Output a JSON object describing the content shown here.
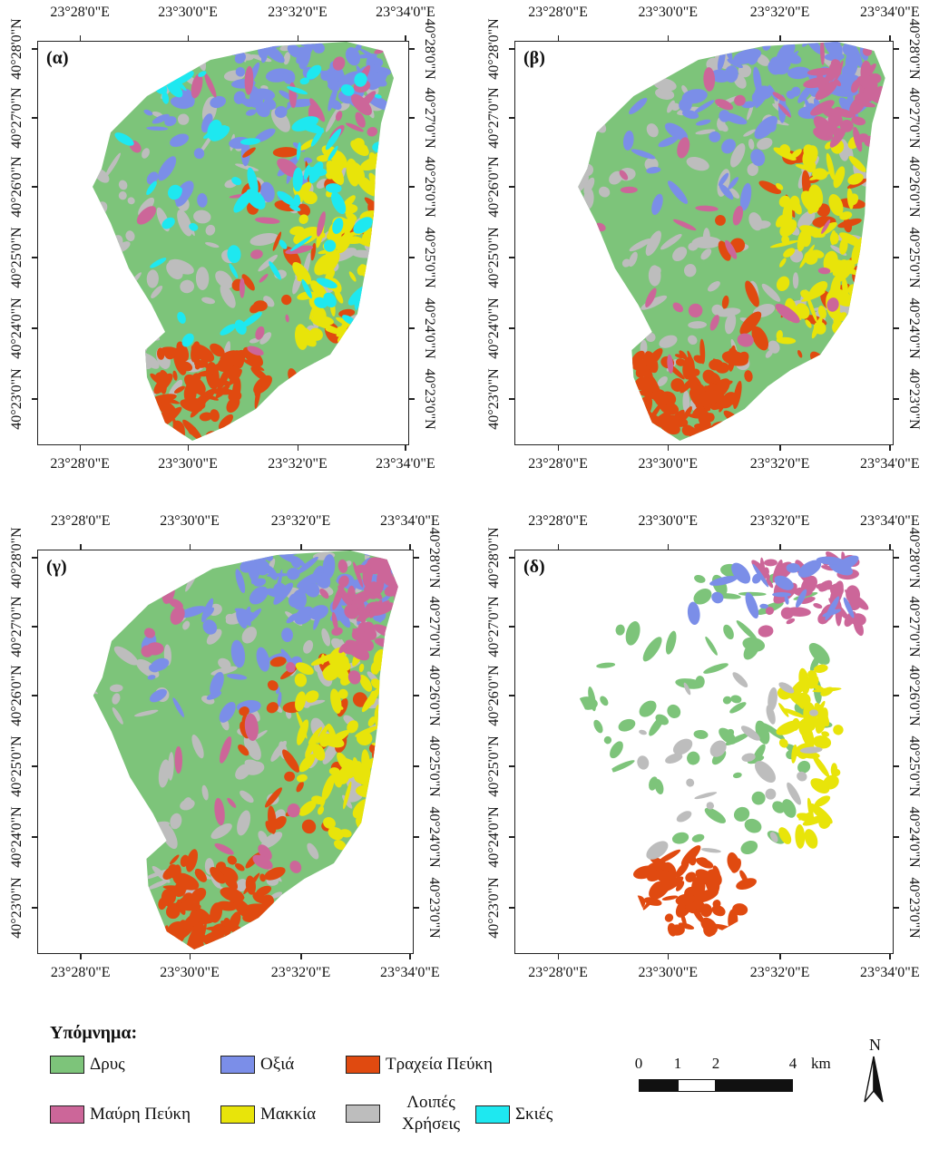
{
  "panels": [
    {
      "label": "(α)"
    },
    {
      "label": "(β)"
    },
    {
      "label": "(γ)"
    },
    {
      "label": "(δ)"
    }
  ],
  "lon_labels": [
    "23°28'0\"E",
    "23°30'0\"E",
    "23°32'0\"E",
    "23°34'0\"E"
  ],
  "lat_labels": [
    "40°28'0\"N",
    "40°27'0\"N",
    "40°26'0\"N",
    "40°25'0\"N",
    "40°24'0\"N",
    "40°23'0\"N"
  ],
  "legend": {
    "title": "Υπόμνημα:",
    "items": [
      {
        "label": "Δρυς",
        "color": "#7dc47a"
      },
      {
        "label": "Οξιά",
        "color": "#7b8ee8"
      },
      {
        "label": "Τραχεία Πεύκη",
        "color": "#e04a10"
      },
      {
        "label": "Μαύρη Πεύκη",
        "color": "#cc6699"
      },
      {
        "label": "Μακκία",
        "color": "#e8e40a"
      },
      {
        "label": "Λοιπές Χρήσεις",
        "color": "#bdbdbd"
      },
      {
        "label": "Σκιές",
        "color": "#1ee8f0"
      }
    ]
  },
  "scale": {
    "ticks": [
      "0",
      "1",
      "2",
      "4"
    ],
    "unit": "km"
  },
  "north": {
    "label": "N"
  }
}
